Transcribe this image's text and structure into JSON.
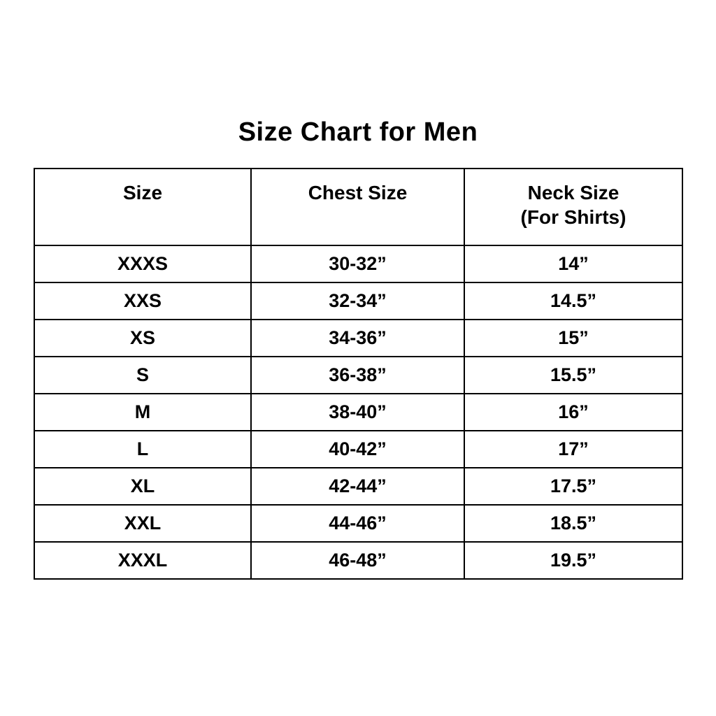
{
  "page": {
    "title": "Size Chart for Men"
  },
  "colors": {
    "background": "#ffffff",
    "text": "#000000",
    "border": "#000000"
  },
  "table": {
    "headers": [
      {
        "label": "Size",
        "sub": ""
      },
      {
        "label": "Chest Size",
        "sub": ""
      },
      {
        "label": "Neck Size",
        "sub": "(For Shirts)"
      }
    ],
    "rows": [
      [
        "XXXS",
        "30-32”",
        "14”"
      ],
      [
        "XXS",
        "32-34”",
        "14.5”"
      ],
      [
        "XS",
        "34-36”",
        "15”"
      ],
      [
        "S",
        "36-38”",
        "15.5”"
      ],
      [
        "M",
        "38-40”",
        "16”"
      ],
      [
        "L",
        "40-42”",
        "17”"
      ],
      [
        "XL",
        "42-44”",
        "17.5”"
      ],
      [
        "XXL",
        "44-46”",
        "18.5”"
      ],
      [
        "XXXL",
        "46-48”",
        "19.5”"
      ]
    ]
  },
  "chart_data": {
    "type": "table",
    "title": "Size Chart for Men",
    "columns": [
      "Size",
      "Chest Size",
      "Neck Size (For Shirts)"
    ],
    "rows": [
      [
        "XXXS",
        "30-32”",
        "14”"
      ],
      [
        "XXS",
        "32-34”",
        "14.5”"
      ],
      [
        "XS",
        "34-36”",
        "15”"
      ],
      [
        "S",
        "36-38”",
        "15.5”"
      ],
      [
        "M",
        "38-40”",
        "16”"
      ],
      [
        "L",
        "40-42”",
        "17”"
      ],
      [
        "XL",
        "42-44”",
        "17.5”"
      ],
      [
        "XXL",
        "44-46”",
        "18.5”"
      ],
      [
        "XXXL",
        "46-48”",
        "19.5”"
      ]
    ],
    "layout": {
      "grid": true,
      "header_row": true,
      "text_align": "center"
    }
  }
}
